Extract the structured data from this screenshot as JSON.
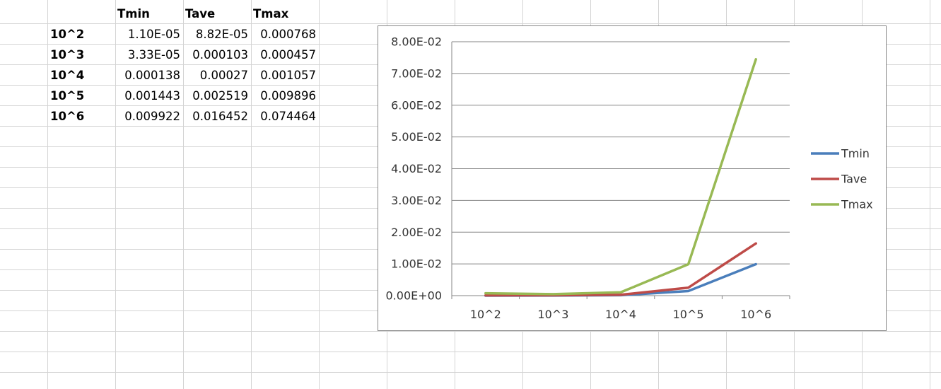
{
  "sheet": {
    "headers": [
      "Tmin",
      "Tave",
      "Tmax"
    ],
    "rows": [
      {
        "label": "10^2",
        "values": [
          "1.10E-05",
          "8.82E-05",
          "0.000768"
        ]
      },
      {
        "label": "10^3",
        "values": [
          "3.33E-05",
          "0.000103",
          "0.000457"
        ]
      },
      {
        "label": "10^4",
        "values": [
          "0.000138",
          "0.00027",
          "0.001057"
        ]
      },
      {
        "label": "10^5",
        "values": [
          "0.001443",
          "0.002519",
          "0.009896"
        ]
      },
      {
        "label": "10^6",
        "values": [
          "0.009922",
          "0.016452",
          "0.074464"
        ]
      }
    ]
  },
  "chart_data": {
    "type": "line",
    "categories": [
      "10^2",
      "10^3",
      "10^4",
      "10^5",
      "10^6"
    ],
    "series": [
      {
        "name": "Tmin",
        "values": [
          1.1e-05,
          3.33e-05,
          0.000138,
          0.001443,
          0.009922
        ],
        "color": "#4a7ebb"
      },
      {
        "name": "Tave",
        "values": [
          8.82e-05,
          0.000103,
          0.00027,
          0.002519,
          0.016452
        ],
        "color": "#be4b48"
      },
      {
        "name": "Tmax",
        "values": [
          0.000768,
          0.000457,
          0.001057,
          0.009896,
          0.074464
        ],
        "color": "#98b954"
      }
    ],
    "ylim": [
      0,
      0.08
    ],
    "yticks": [
      "0.00E+00",
      "1.00E-02",
      "2.00E-02",
      "3.00E-02",
      "4.00E-02",
      "5.00E-02",
      "6.00E-02",
      "7.00E-02",
      "8.00E-02"
    ],
    "title": "",
    "xlabel": "",
    "ylabel": "",
    "grid": true,
    "legend_position": "right"
  }
}
